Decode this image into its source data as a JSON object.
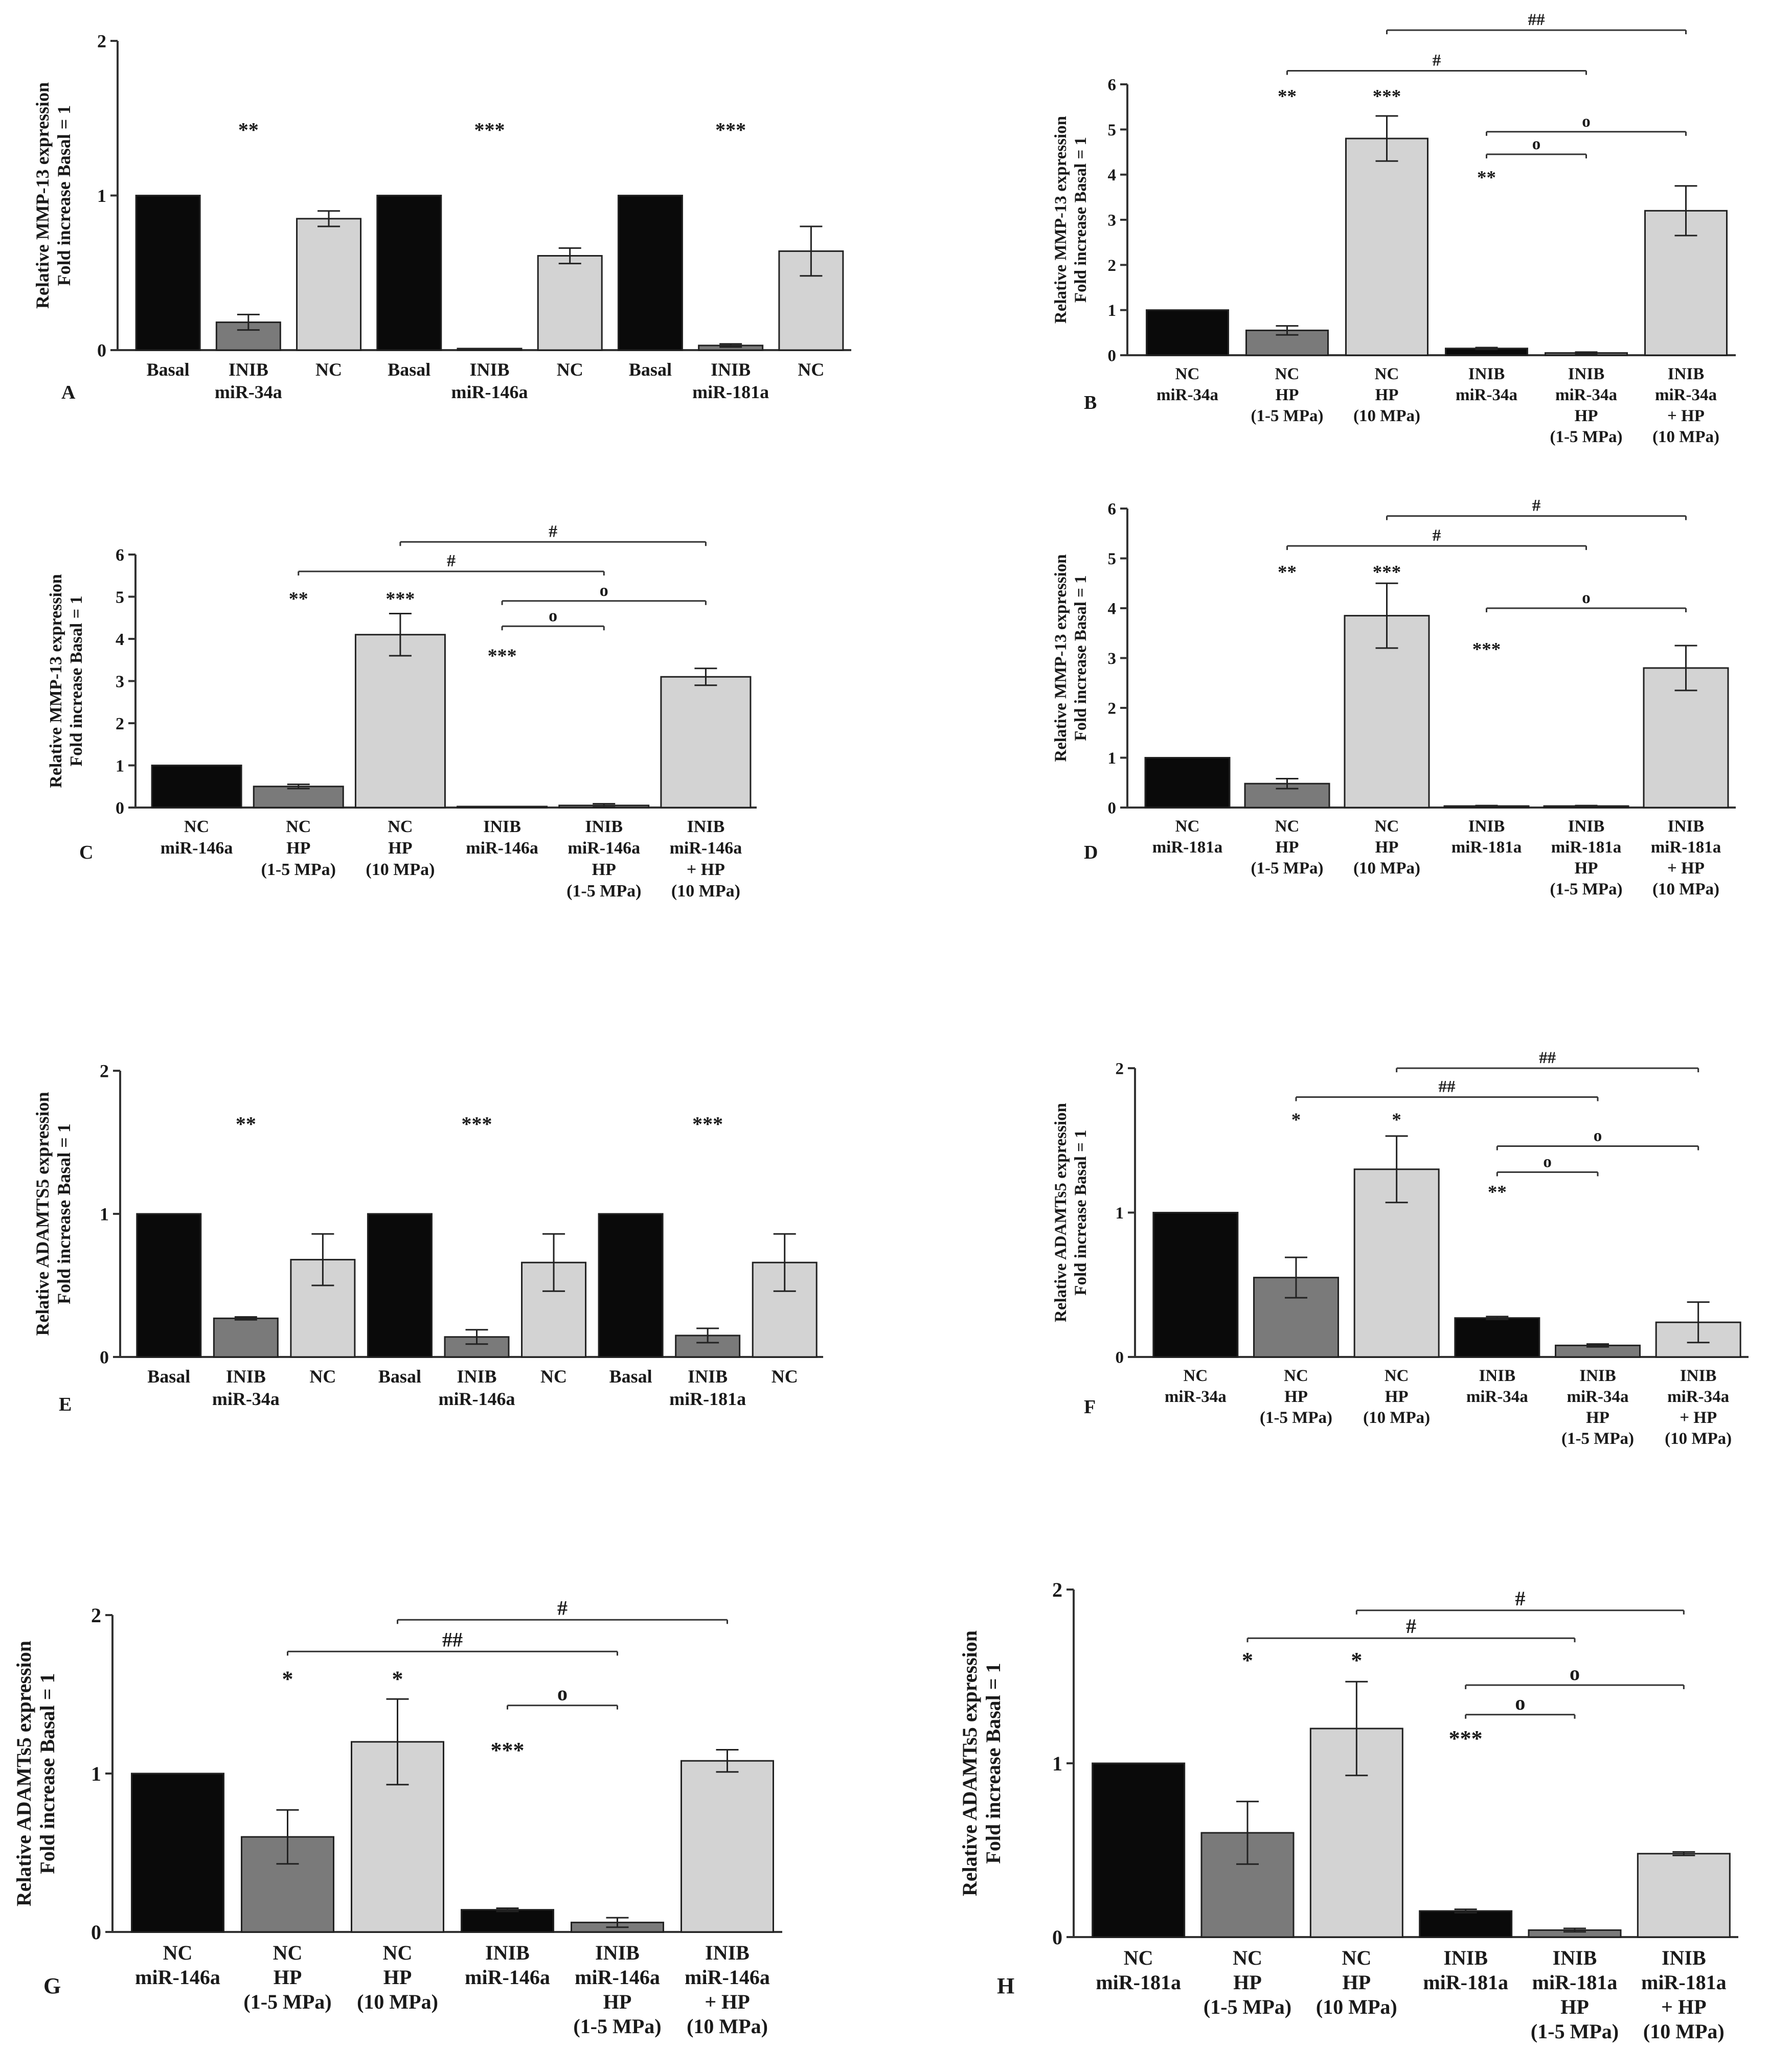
{
  "figure": {
    "colors": {
      "black": "#0a0a0a",
      "dark_gray": "#7a7a7a",
      "light_gray": "#d3d3d3",
      "axis": "#333333"
    }
  },
  "chart_data": [
    {
      "panel": "A",
      "type": "bar",
      "ylabel_lines": [
        "Relative MMP-13 expression",
        "Fold increase Basal = 1"
      ],
      "ylim": [
        0,
        2
      ],
      "yticks": [
        "0",
        "1",
        "2"
      ],
      "bars": [
        {
          "label": [
            "Basal"
          ],
          "value": 1,
          "err": 0,
          "color": "black"
        },
        {
          "label": [
            "INIB",
            "miR-34a"
          ],
          "value": 0.18,
          "err": 0.05,
          "color": "dark_gray"
        },
        {
          "label": [
            "NC"
          ],
          "value": 0.85,
          "err": 0.05,
          "color": "light_gray"
        },
        {
          "label": [
            "Basal"
          ],
          "value": 1,
          "err": 0,
          "color": "black"
        },
        {
          "label": [
            "INIB",
            "miR-146a"
          ],
          "value": 0.01,
          "err": 0,
          "color": "dark_gray"
        },
        {
          "label": [
            "NC"
          ],
          "value": 0.61,
          "err": 0.05,
          "color": "light_gray"
        },
        {
          "label": [
            "Basal"
          ],
          "value": 1,
          "err": 0,
          "color": "black"
        },
        {
          "label": [
            "INIB",
            "miR-181a"
          ],
          "value": 0.03,
          "err": 0.01,
          "color": "dark_gray"
        },
        {
          "label": [
            "NC"
          ],
          "value": 0.64,
          "err": 0.16,
          "color": "light_gray"
        }
      ],
      "stars": [
        {
          "bar": 1,
          "text": "**",
          "y": 1.38
        },
        {
          "bar": 4,
          "text": "***",
          "y": 1.38
        },
        {
          "bar": 7,
          "text": "***",
          "y": 1.38
        }
      ],
      "brackets": []
    },
    {
      "panel": "B",
      "type": "bar",
      "ylabel_lines": [
        "Relative MMP-13 expression",
        "Fold increase Basal = 1"
      ],
      "ylim": [
        0,
        6
      ],
      "yticks": [
        "0",
        "1",
        "2",
        "3",
        "4",
        "5",
        "6"
      ],
      "bars": [
        {
          "label": [
            "NC",
            "miR-34a"
          ],
          "value": 1.0,
          "err": 0,
          "color": "black"
        },
        {
          "label": [
            "NC",
            "HP",
            "(1-5 MPa)"
          ],
          "value": 0.55,
          "err": 0.1,
          "color": "dark_gray"
        },
        {
          "label": [
            "NC",
            "HP",
            "(10 MPa)"
          ],
          "value": 4.8,
          "err": 0.5,
          "color": "light_gray"
        },
        {
          "label": [
            "INIB",
            "miR-34a"
          ],
          "value": 0.15,
          "err": 0.02,
          "color": "black"
        },
        {
          "label": [
            "INIB",
            "miR-34a",
            "HP",
            "(1-5 MPa)"
          ],
          "value": 0.05,
          "err": 0.02,
          "color": "dark_gray"
        },
        {
          "label": [
            "INIB",
            "miR-34a",
            "+ HP",
            "(10 MPa)"
          ],
          "value": 3.2,
          "err": 0.55,
          "color": "light_gray"
        }
      ],
      "stars": [
        {
          "bar": 1,
          "text": "**",
          "y": 5.6
        },
        {
          "bar": 2,
          "text": "***",
          "y": 5.6
        },
        {
          "bar": 3,
          "text": "**",
          "y": 3.8
        }
      ],
      "brackets": [
        {
          "from": 2,
          "to": 5,
          "y": 7.2,
          "text": "##"
        },
        {
          "from": 1,
          "to": 4,
          "y": 6.3,
          "text": "#"
        },
        {
          "from": 3,
          "to": 5,
          "y": 4.95,
          "text": "o"
        },
        {
          "from": 3,
          "to": 4,
          "y": 4.45,
          "text": "o"
        }
      ]
    },
    {
      "panel": "C",
      "type": "bar",
      "ylabel_lines": [
        "Relative MMP-13 expression",
        "Fold increase Basal = 1"
      ],
      "ylim": [
        0,
        6
      ],
      "yticks": [
        "0",
        "1",
        "2",
        "3",
        "4",
        "5",
        "6"
      ],
      "bars": [
        {
          "label": [
            "NC",
            "miR-146a"
          ],
          "value": 1.0,
          "err": 0,
          "color": "black"
        },
        {
          "label": [
            "NC",
            "HP",
            "(1-5 MPa)"
          ],
          "value": 0.5,
          "err": 0.05,
          "color": "dark_gray"
        },
        {
          "label": [
            "NC",
            "HP",
            "(10 MPa)"
          ],
          "value": 4.1,
          "err": 0.5,
          "color": "light_gray"
        },
        {
          "label": [
            "INIB",
            "miR-146a"
          ],
          "value": 0,
          "err": 0,
          "color": "black"
        },
        {
          "label": [
            "INIB",
            "miR-146a",
            "HP",
            "(1-5 MPa)"
          ],
          "value": 0.05,
          "err": 0.04,
          "color": "dark_gray"
        },
        {
          "label": [
            "INIB",
            "miR-146a",
            "+ HP",
            "(10 MPa)"
          ],
          "value": 3.1,
          "err": 0.2,
          "color": "light_gray"
        }
      ],
      "stars": [
        {
          "bar": 1,
          "text": "**",
          "y": 4.8
        },
        {
          "bar": 2,
          "text": "***",
          "y": 4.8
        },
        {
          "bar": 3,
          "text": "***",
          "y": 3.45
        }
      ],
      "brackets": [
        {
          "from": 2,
          "to": 5,
          "y": 6.3,
          "text": "#"
        },
        {
          "from": 1,
          "to": 4,
          "y": 5.6,
          "text": "#"
        },
        {
          "from": 3,
          "to": 5,
          "y": 4.9,
          "text": "o"
        },
        {
          "from": 3,
          "to": 4,
          "y": 4.3,
          "text": "o"
        }
      ]
    },
    {
      "panel": "D",
      "type": "bar",
      "ylabel_lines": [
        "Relative MMP-13 expression",
        "Fold increase Basal = 1"
      ],
      "ylim": [
        0,
        6
      ],
      "yticks": [
        "0",
        "1",
        "2",
        "3",
        "4",
        "5",
        "6"
      ],
      "bars": [
        {
          "label": [
            "NC",
            "miR-181a"
          ],
          "value": 1.0,
          "err": 0,
          "color": "black"
        },
        {
          "label": [
            "NC",
            "HP",
            "(1-5 MPa)"
          ],
          "value": 0.48,
          "err": 0.1,
          "color": "dark_gray"
        },
        {
          "label": [
            "NC",
            "HP",
            "(10 MPa)"
          ],
          "value": 3.85,
          "err": 0.65,
          "color": "light_gray"
        },
        {
          "label": [
            "INIB",
            "miR-181a"
          ],
          "value": 0.03,
          "err": 0.01,
          "color": "black"
        },
        {
          "label": [
            "INIB",
            "miR-181a",
            "HP",
            "(1-5 MPa)"
          ],
          "value": 0.03,
          "err": 0.01,
          "color": "dark_gray"
        },
        {
          "label": [
            "INIB",
            "miR-181a",
            "+ HP",
            "(10 MPa)"
          ],
          "value": 2.8,
          "err": 0.45,
          "color": "light_gray"
        }
      ],
      "stars": [
        {
          "bar": 1,
          "text": "**",
          "y": 4.6
        },
        {
          "bar": 2,
          "text": "***",
          "y": 4.6
        },
        {
          "bar": 3,
          "text": "***",
          "y": 3.05
        }
      ],
      "brackets": [
        {
          "from": 2,
          "to": 5,
          "y": 5.85,
          "text": "#"
        },
        {
          "from": 1,
          "to": 4,
          "y": 5.25,
          "text": "#"
        },
        {
          "from": 3,
          "to": 5,
          "y": 4.0,
          "text": "o"
        }
      ]
    },
    {
      "panel": "E",
      "type": "bar",
      "ylabel_lines": [
        "Relative ADAMTS5 expression",
        "Fold increase Basal = 1"
      ],
      "ylim": [
        0,
        2
      ],
      "yticks": [
        "0",
        "1",
        "2"
      ],
      "bars": [
        {
          "label": [
            "Basal"
          ],
          "value": 1,
          "err": 0,
          "color": "black"
        },
        {
          "label": [
            "INIB",
            "miR-34a"
          ],
          "value": 0.27,
          "err": 0.01,
          "color": "dark_gray"
        },
        {
          "label": [
            "NC"
          ],
          "value": 0.68,
          "err": 0.18,
          "color": "light_gray"
        },
        {
          "label": [
            "Basal"
          ],
          "value": 1,
          "err": 0,
          "color": "black"
        },
        {
          "label": [
            "INIB",
            "miR-146a"
          ],
          "value": 0.14,
          "err": 0.05,
          "color": "dark_gray"
        },
        {
          "label": [
            "NC"
          ],
          "value": 0.66,
          "err": 0.2,
          "color": "light_gray"
        },
        {
          "label": [
            "Basal"
          ],
          "value": 1,
          "err": 0,
          "color": "black"
        },
        {
          "label": [
            "INIB",
            "miR-181a"
          ],
          "value": 0.15,
          "err": 0.05,
          "color": "dark_gray"
        },
        {
          "label": [
            "NC"
          ],
          "value": 0.66,
          "err": 0.2,
          "color": "light_gray"
        }
      ],
      "stars": [
        {
          "bar": 1,
          "text": "**",
          "y": 1.58
        },
        {
          "bar": 4,
          "text": "***",
          "y": 1.58
        },
        {
          "bar": 7,
          "text": "***",
          "y": 1.58
        }
      ],
      "brackets": []
    },
    {
      "panel": "F",
      "type": "bar",
      "ylabel_lines": [
        "Relative ADAMTs5 expression",
        "Fold increase Basal = 1"
      ],
      "ylim": [
        0,
        2
      ],
      "yticks": [
        "0",
        "1",
        "2"
      ],
      "bars": [
        {
          "label": [
            "NC",
            "miR-34a"
          ],
          "value": 1.0,
          "err": 0,
          "color": "black"
        },
        {
          "label": [
            "NC",
            "HP",
            "(1-5 MPa)"
          ],
          "value": 0.55,
          "err": 0.14,
          "color": "dark_gray"
        },
        {
          "label": [
            "NC",
            "HP",
            "(10 MPa)"
          ],
          "value": 1.3,
          "err": 0.23,
          "color": "light_gray"
        },
        {
          "label": [
            "INIB",
            "miR-34a"
          ],
          "value": 0.27,
          "err": 0.01,
          "color": "black"
        },
        {
          "label": [
            "INIB",
            "miR-34a",
            "HP",
            "(1-5 MPa)"
          ],
          "value": 0.08,
          "err": 0.01,
          "color": "dark_gray"
        },
        {
          "label": [
            "INIB",
            "miR-34a",
            "+ HP",
            "(10 MPa)"
          ],
          "value": 0.24,
          "err": 0.14,
          "color": "light_gray"
        }
      ],
      "stars": [
        {
          "bar": 1,
          "text": "*",
          "y": 1.6
        },
        {
          "bar": 2,
          "text": "*",
          "y": 1.6
        },
        {
          "bar": 3,
          "text": "**",
          "y": 1.1
        }
      ],
      "brackets": [
        {
          "from": 2,
          "to": 5,
          "y": 2.0,
          "text": "##"
        },
        {
          "from": 1,
          "to": 4,
          "y": 1.8,
          "text": "##"
        },
        {
          "from": 3,
          "to": 5,
          "y": 1.46,
          "text": "o"
        },
        {
          "from": 3,
          "to": 4,
          "y": 1.28,
          "text": "o"
        }
      ]
    },
    {
      "panel": "G",
      "type": "bar",
      "ylabel_lines": [
        "Relative ADAMTs5 expression",
        "Fold increase Basal = 1"
      ],
      "ylim": [
        0,
        2
      ],
      "yticks": [
        "0",
        "1",
        "2"
      ],
      "bars": [
        {
          "label": [
            "NC",
            "miR-146a"
          ],
          "value": 1.0,
          "err": 0,
          "color": "black"
        },
        {
          "label": [
            "NC",
            "HP",
            "(1-5 MPa)"
          ],
          "value": 0.6,
          "err": 0.17,
          "color": "dark_gray"
        },
        {
          "label": [
            "NC",
            "HP",
            "(10 MPa)"
          ],
          "value": 1.2,
          "err": 0.27,
          "color": "light_gray"
        },
        {
          "label": [
            "INIB",
            "miR-146a"
          ],
          "value": 0.14,
          "err": 0.01,
          "color": "black"
        },
        {
          "label": [
            "INIB",
            "miR-146a",
            "HP",
            "(1-5 MPa)"
          ],
          "value": 0.06,
          "err": 0.03,
          "color": "dark_gray"
        },
        {
          "label": [
            "INIB",
            "miR-146a",
            "+ HP",
            "(10 MPa)"
          ],
          "value": 1.08,
          "err": 0.07,
          "color": "light_gray"
        }
      ],
      "stars": [
        {
          "bar": 1,
          "text": "*",
          "y": 1.55
        },
        {
          "bar": 2,
          "text": "*",
          "y": 1.55
        },
        {
          "bar": 3,
          "text": "***",
          "y": 1.1
        }
      ],
      "brackets": [
        {
          "from": 2,
          "to": 5,
          "y": 1.97,
          "text": "#"
        },
        {
          "from": 1,
          "to": 4,
          "y": 1.77,
          "text": "##"
        },
        {
          "from": 3,
          "to": 4,
          "y": 1.43,
          "text": "o"
        }
      ]
    },
    {
      "panel": "H",
      "type": "bar",
      "ylabel_lines": [
        "Relative ADAMTs5 expression",
        "Fold increase Basal = 1"
      ],
      "ylim": [
        0,
        2
      ],
      "yticks": [
        "0",
        "1",
        "2"
      ],
      "bars": [
        {
          "label": [
            "NC",
            "miR-181a"
          ],
          "value": 1.0,
          "err": 0,
          "color": "black"
        },
        {
          "label": [
            "NC",
            "HP",
            "(1-5 MPa)"
          ],
          "value": 0.6,
          "err": 0.18,
          "color": "dark_gray"
        },
        {
          "label": [
            "NC",
            "HP",
            "(10 MPa)"
          ],
          "value": 1.2,
          "err": 0.27,
          "color": "light_gray"
        },
        {
          "label": [
            "INIB",
            "miR-181a"
          ],
          "value": 0.15,
          "err": 0.01,
          "color": "black"
        },
        {
          "label": [
            "INIB",
            "miR-181a",
            "HP",
            "(1-5 MPa)"
          ],
          "value": 0.04,
          "err": 0.01,
          "color": "dark_gray"
        },
        {
          "label": [
            "INIB",
            "miR-181a",
            "+ HP",
            "(10 MPa)"
          ],
          "value": 0.48,
          "err": 0.01,
          "color": "light_gray"
        }
      ],
      "stars": [
        {
          "bar": 1,
          "text": "*",
          "y": 1.55
        },
        {
          "bar": 3,
          "text": "***",
          "y": 1.1
        },
        {
          "bar": 2,
          "text": "*",
          "y": 1.55
        }
      ],
      "brackets": [
        {
          "from": 2,
          "to": 5,
          "y": 1.88,
          "text": "#"
        },
        {
          "from": 1,
          "to": 4,
          "y": 1.72,
          "text": "#"
        },
        {
          "from": 3,
          "to": 5,
          "y": 1.45,
          "text": "o"
        },
        {
          "from": 3,
          "to": 4,
          "y": 1.28,
          "text": "o"
        }
      ]
    }
  ]
}
